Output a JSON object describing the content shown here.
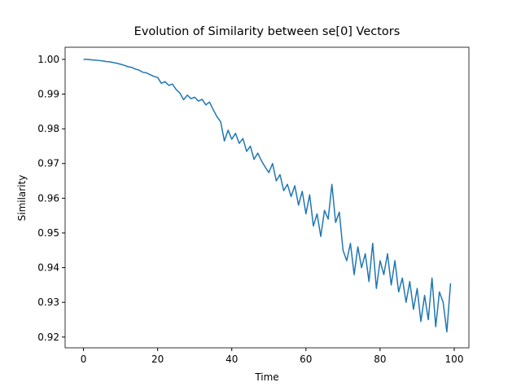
{
  "chart_data": {
    "type": "line",
    "title": "Evolution of Similarity between se[0] Vectors",
    "x_label": "Time",
    "y_label": "Similarity",
    "x": [
      0,
      1,
      2,
      3,
      4,
      5,
      6,
      7,
      8,
      9,
      10,
      11,
      12,
      13,
      14,
      15,
      16,
      17,
      18,
      19,
      20,
      21,
      22,
      23,
      24,
      25,
      26,
      27,
      28,
      29,
      30,
      31,
      32,
      33,
      34,
      35,
      36,
      37,
      38,
      39,
      40,
      41,
      42,
      43,
      44,
      45,
      46,
      47,
      48,
      49,
      50,
      51,
      52,
      53,
      54,
      55,
      56,
      57,
      58,
      59,
      60,
      61,
      62,
      63,
      64,
      65,
      66,
      67,
      68,
      69,
      70,
      71,
      72,
      73,
      74,
      75,
      76,
      77,
      78,
      79,
      80,
      81,
      82,
      83,
      84,
      85,
      86,
      87,
      88,
      89,
      90,
      91,
      92,
      93,
      94,
      95,
      96,
      97,
      98,
      99
    ],
    "series": [
      {
        "color": "#1f77b4",
        "values": [
          1.0,
          1.0,
          0.9999,
          0.9998,
          0.9997,
          0.9996,
          0.9994,
          0.9993,
          0.9991,
          0.9989,
          0.9986,
          0.9983,
          0.9979,
          0.9977,
          0.9972,
          0.9969,
          0.9963,
          0.9961,
          0.9956,
          0.9951,
          0.9948,
          0.9931,
          0.9936,
          0.9925,
          0.9929,
          0.9913,
          0.9903,
          0.9884,
          0.9897,
          0.9887,
          0.9891,
          0.988,
          0.9885,
          0.9869,
          0.9877,
          0.9855,
          0.9835,
          0.982,
          0.9765,
          0.9796,
          0.977,
          0.9787,
          0.9758,
          0.9772,
          0.9735,
          0.975,
          0.9712,
          0.973,
          0.9708,
          0.969,
          0.9674,
          0.97,
          0.965,
          0.9668,
          0.9622,
          0.964,
          0.9605,
          0.9636,
          0.958,
          0.962,
          0.9555,
          0.961,
          0.952,
          0.9555,
          0.949,
          0.9565,
          0.954,
          0.964,
          0.953,
          0.956,
          0.945,
          0.942,
          0.947,
          0.938,
          0.946,
          0.94,
          0.944,
          0.936,
          0.947,
          0.934,
          0.942,
          0.938,
          0.944,
          0.935,
          0.942,
          0.933,
          0.937,
          0.93,
          0.936,
          0.928,
          0.934,
          0.9245,
          0.932,
          0.925,
          0.937,
          0.923,
          0.933,
          0.93,
          0.9215,
          0.9355
        ]
      }
    ],
    "xlim": [
      -4.95,
      103.95
    ],
    "ylim": [
      0.9169,
      1.0035
    ],
    "xticks": [
      0,
      20,
      40,
      60,
      80,
      100
    ],
    "yticks": [
      0.92,
      0.93,
      0.94,
      0.95,
      0.96,
      0.97,
      0.98,
      0.99,
      {
        "value": 1,
        "label": "1.00"
      }
    ]
  }
}
